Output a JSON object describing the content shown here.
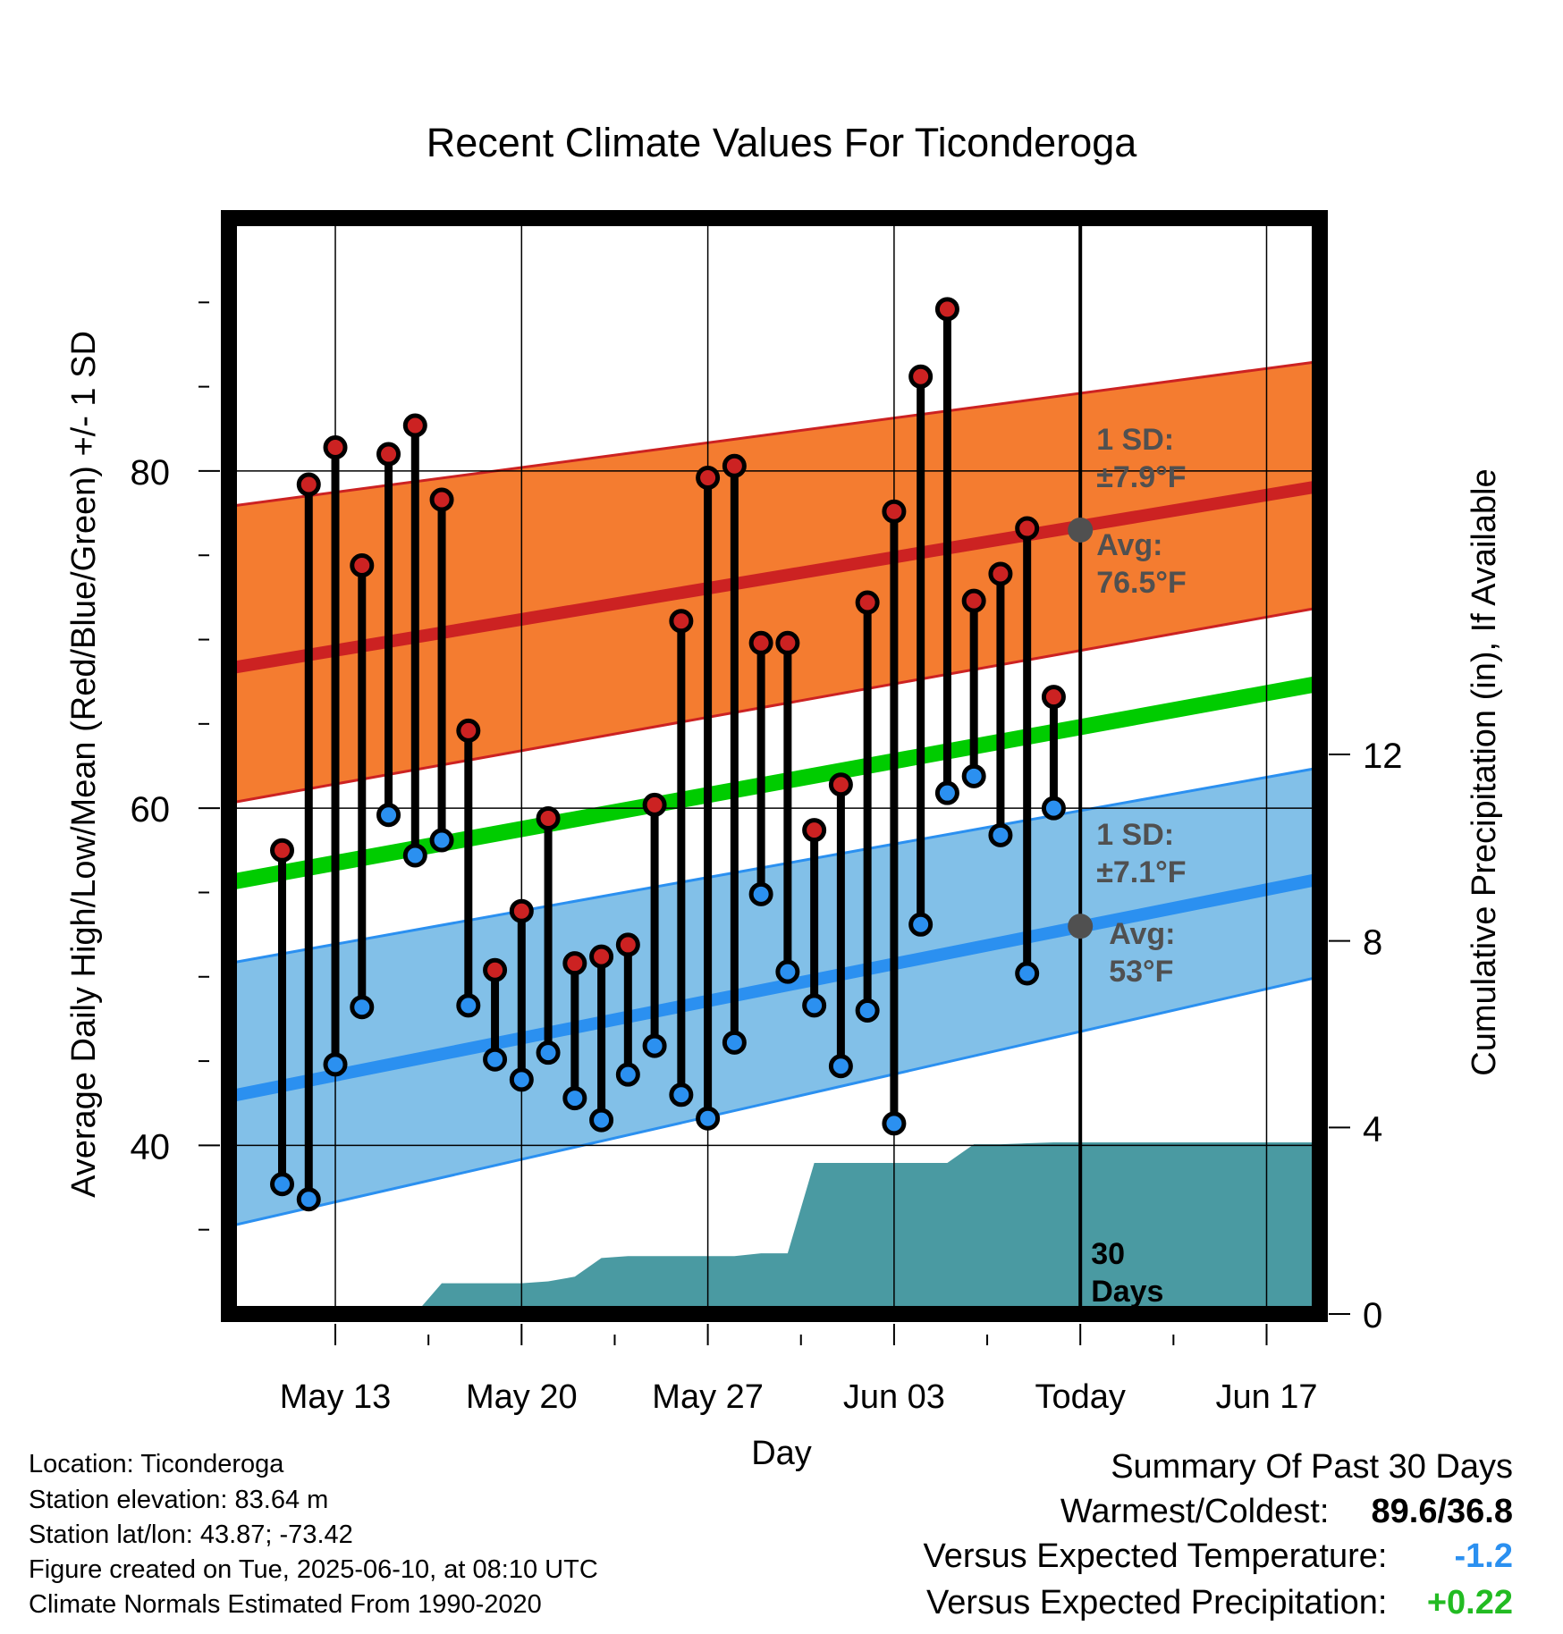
{
  "chart_data": {
    "type": "line",
    "title": "Recent Climate Values For Ticonderoga",
    "xlabel": "Day",
    "ylabel": "Average Daily High/Low/Mean (Red/Blue/Green) +/- 1 SD",
    "y2label": "Cumulative Precipitation (in), If Available",
    "x_range": [
      "2025-05-09",
      "2025-06-19"
    ],
    "ylim": [
      30,
      95
    ],
    "y2lim": [
      0,
      23.5
    ],
    "y_ticks": [
      40,
      60,
      80
    ],
    "y2_ticks": [
      0,
      4,
      8,
      12
    ],
    "x_ticks": [
      {
        "date": "2025-05-13",
        "label": "May 13"
      },
      {
        "date": "2025-05-20",
        "label": "May 20"
      },
      {
        "date": "2025-05-27",
        "label": "May 27"
      },
      {
        "date": "2025-06-03",
        "label": "Jun 03"
      },
      {
        "date": "2025-06-10",
        "label": "Today"
      },
      {
        "date": "2025-06-17",
        "label": "Jun 17"
      }
    ],
    "today": "2025-06-10",
    "today_label": "30\nDays",
    "normals": {
      "x": [
        "2025-05-09",
        "2025-06-19"
      ],
      "high_mean": [
        68.3,
        79.1
      ],
      "high_upper": [
        77.9,
        86.5
      ],
      "high_lower": [
        60.3,
        71.9
      ],
      "low_mean": [
        42.9,
        55.8
      ],
      "low_upper": [
        50.8,
        62.4
      ],
      "low_lower": [
        35.2,
        50.0
      ],
      "mean": [
        55.6,
        67.4
      ]
    },
    "annotations": {
      "high_sd": "1 SD:\n±7.9°F",
      "high_avg": "Avg:\n76.5°F",
      "high_avg_value": 76.5,
      "low_sd": "1 SD:\n±7.1°F",
      "low_avg": "Avg:\n53°F",
      "low_avg_value": 53.0
    },
    "series": [
      {
        "name": "Daily High",
        "x": [
          "2025-05-11",
          "2025-05-12",
          "2025-05-13",
          "2025-05-14",
          "2025-05-15",
          "2025-05-16",
          "2025-05-17",
          "2025-05-18",
          "2025-05-19",
          "2025-05-20",
          "2025-05-21",
          "2025-05-22",
          "2025-05-23",
          "2025-05-24",
          "2025-05-25",
          "2025-05-26",
          "2025-05-27",
          "2025-05-28",
          "2025-05-29",
          "2025-05-30",
          "2025-05-31",
          "2025-06-01",
          "2025-06-02",
          "2025-06-03",
          "2025-06-04",
          "2025-06-05",
          "2025-06-06",
          "2025-06-07",
          "2025-06-08",
          "2025-06-09"
        ],
        "values": [
          57.5,
          79.2,
          81.4,
          74.4,
          81.0,
          82.7,
          78.3,
          64.6,
          50.4,
          53.9,
          59.4,
          50.8,
          51.2,
          51.9,
          60.2,
          71.1,
          79.6,
          80.3,
          69.8,
          69.8,
          58.7,
          61.4,
          72.2,
          77.6,
          85.6,
          89.6,
          72.3,
          73.9,
          76.6,
          66.6
        ],
        "color": "#cc2222"
      },
      {
        "name": "Daily Low",
        "x": [
          "2025-05-11",
          "2025-05-12",
          "2025-05-13",
          "2025-05-14",
          "2025-05-15",
          "2025-05-16",
          "2025-05-17",
          "2025-05-18",
          "2025-05-19",
          "2025-05-20",
          "2025-05-21",
          "2025-05-22",
          "2025-05-23",
          "2025-05-24",
          "2025-05-25",
          "2025-05-26",
          "2025-05-27",
          "2025-05-28",
          "2025-05-29",
          "2025-05-30",
          "2025-05-31",
          "2025-06-01",
          "2025-06-02",
          "2025-06-03",
          "2025-06-04",
          "2025-06-05",
          "2025-06-06",
          "2025-06-07",
          "2025-06-08",
          "2025-06-09"
        ],
        "values": [
          37.7,
          36.8,
          44.8,
          48.2,
          59.6,
          57.2,
          58.1,
          48.3,
          45.1,
          43.9,
          45.5,
          42.8,
          41.5,
          44.2,
          45.9,
          43.0,
          41.6,
          46.1,
          54.9,
          50.3,
          48.3,
          44.7,
          48.0,
          41.3,
          53.1,
          60.9,
          61.9,
          58.4,
          50.2,
          60.0
        ],
        "color": "#2b90f0"
      },
      {
        "name": "Cumulative Precipitation",
        "axis": "y2",
        "x": [
          "2025-05-15",
          "2025-05-16",
          "2025-05-17",
          "2025-05-18",
          "2025-05-19",
          "2025-05-20",
          "2025-05-21",
          "2025-05-22",
          "2025-05-23",
          "2025-05-24",
          "2025-05-25",
          "2025-05-26",
          "2025-05-27",
          "2025-05-28",
          "2025-05-29",
          "2025-05-30",
          "2025-05-31",
          "2025-06-01",
          "2025-06-02",
          "2025-06-03",
          "2025-06-04",
          "2025-06-05",
          "2025-06-06",
          "2025-06-07",
          "2025-06-08",
          "2025-06-09",
          "2025-06-10",
          "2025-06-19"
        ],
        "values": [
          0.0,
          0.0,
          0.66,
          0.66,
          0.66,
          0.66,
          0.7,
          0.8,
          1.2,
          1.24,
          1.24,
          1.24,
          1.24,
          1.24,
          1.3,
          1.3,
          3.24,
          3.24,
          3.24,
          3.24,
          3.24,
          3.24,
          3.64,
          3.64,
          3.66,
          3.68,
          3.68,
          3.68
        ],
        "color": "#4a9aa2"
      }
    ]
  },
  "info": {
    "location": "Location: Ticonderoga",
    "elevation": "Station elevation: 83.64 m",
    "latlon": "Station lat/lon: 43.87; -73.42",
    "created": "Figure created on Tue, 2025-06-10, at 08:10 UTC",
    "normals": "Climate Normals Estimated From 1990-2020"
  },
  "summary": {
    "title": "Summary Of Past 30 Days",
    "warmest_label": "Warmest/Coldest:",
    "warmest_value": "89.6/36.8",
    "temp_label": "Versus Expected Temperature:",
    "temp_value": "-1.2",
    "temp_color": "#2b90f0",
    "precip_label": "Versus Expected Precipitation:",
    "precip_value": "+0.22",
    "precip_color": "#22bb22"
  },
  "colors": {
    "high_band": "#f47c30",
    "high_line": "#cc2222",
    "low_band": "#82c0e8",
    "low_line": "#2b90f0",
    "mean_line": "#00cc00",
    "precip_fill": "#4a9aa2",
    "avg_marker": "#505050"
  }
}
